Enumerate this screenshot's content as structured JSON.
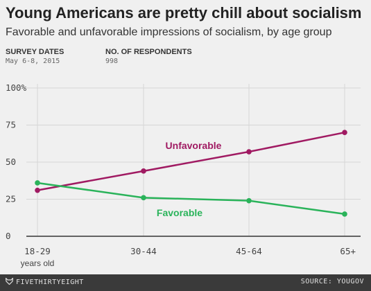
{
  "header": {
    "title": "Young Americans are pretty chill about socialism",
    "subtitle": "Favorable and unfavorable impressions of socialism, by age group"
  },
  "meta": {
    "survey_dates_label": "SURVEY DATES",
    "survey_dates_value": "May 6-8, 2015",
    "respondents_label": "NO. OF RESPONDENTS",
    "respondents_value": "998"
  },
  "chart_data": {
    "type": "line",
    "categories": [
      "18-29",
      "30-44",
      "45-64",
      "65+"
    ],
    "category_sublabels": [
      "years old",
      "",
      "",
      ""
    ],
    "yticks": [
      "0",
      "25",
      "50",
      "75",
      "100%"
    ],
    "ylim": [
      0,
      100
    ],
    "grid": true,
    "series": [
      {
        "name": "Unfavorable",
        "values": [
          31,
          44,
          57,
          70
        ],
        "color": "#a01a62"
      },
      {
        "name": "Favorable",
        "values": [
          36,
          26,
          24,
          15
        ],
        "color": "#2ab35a"
      }
    ]
  },
  "footer": {
    "brand": "FIVETHIRTYEIGHT",
    "source": "SOURCE: YOUGOV"
  }
}
